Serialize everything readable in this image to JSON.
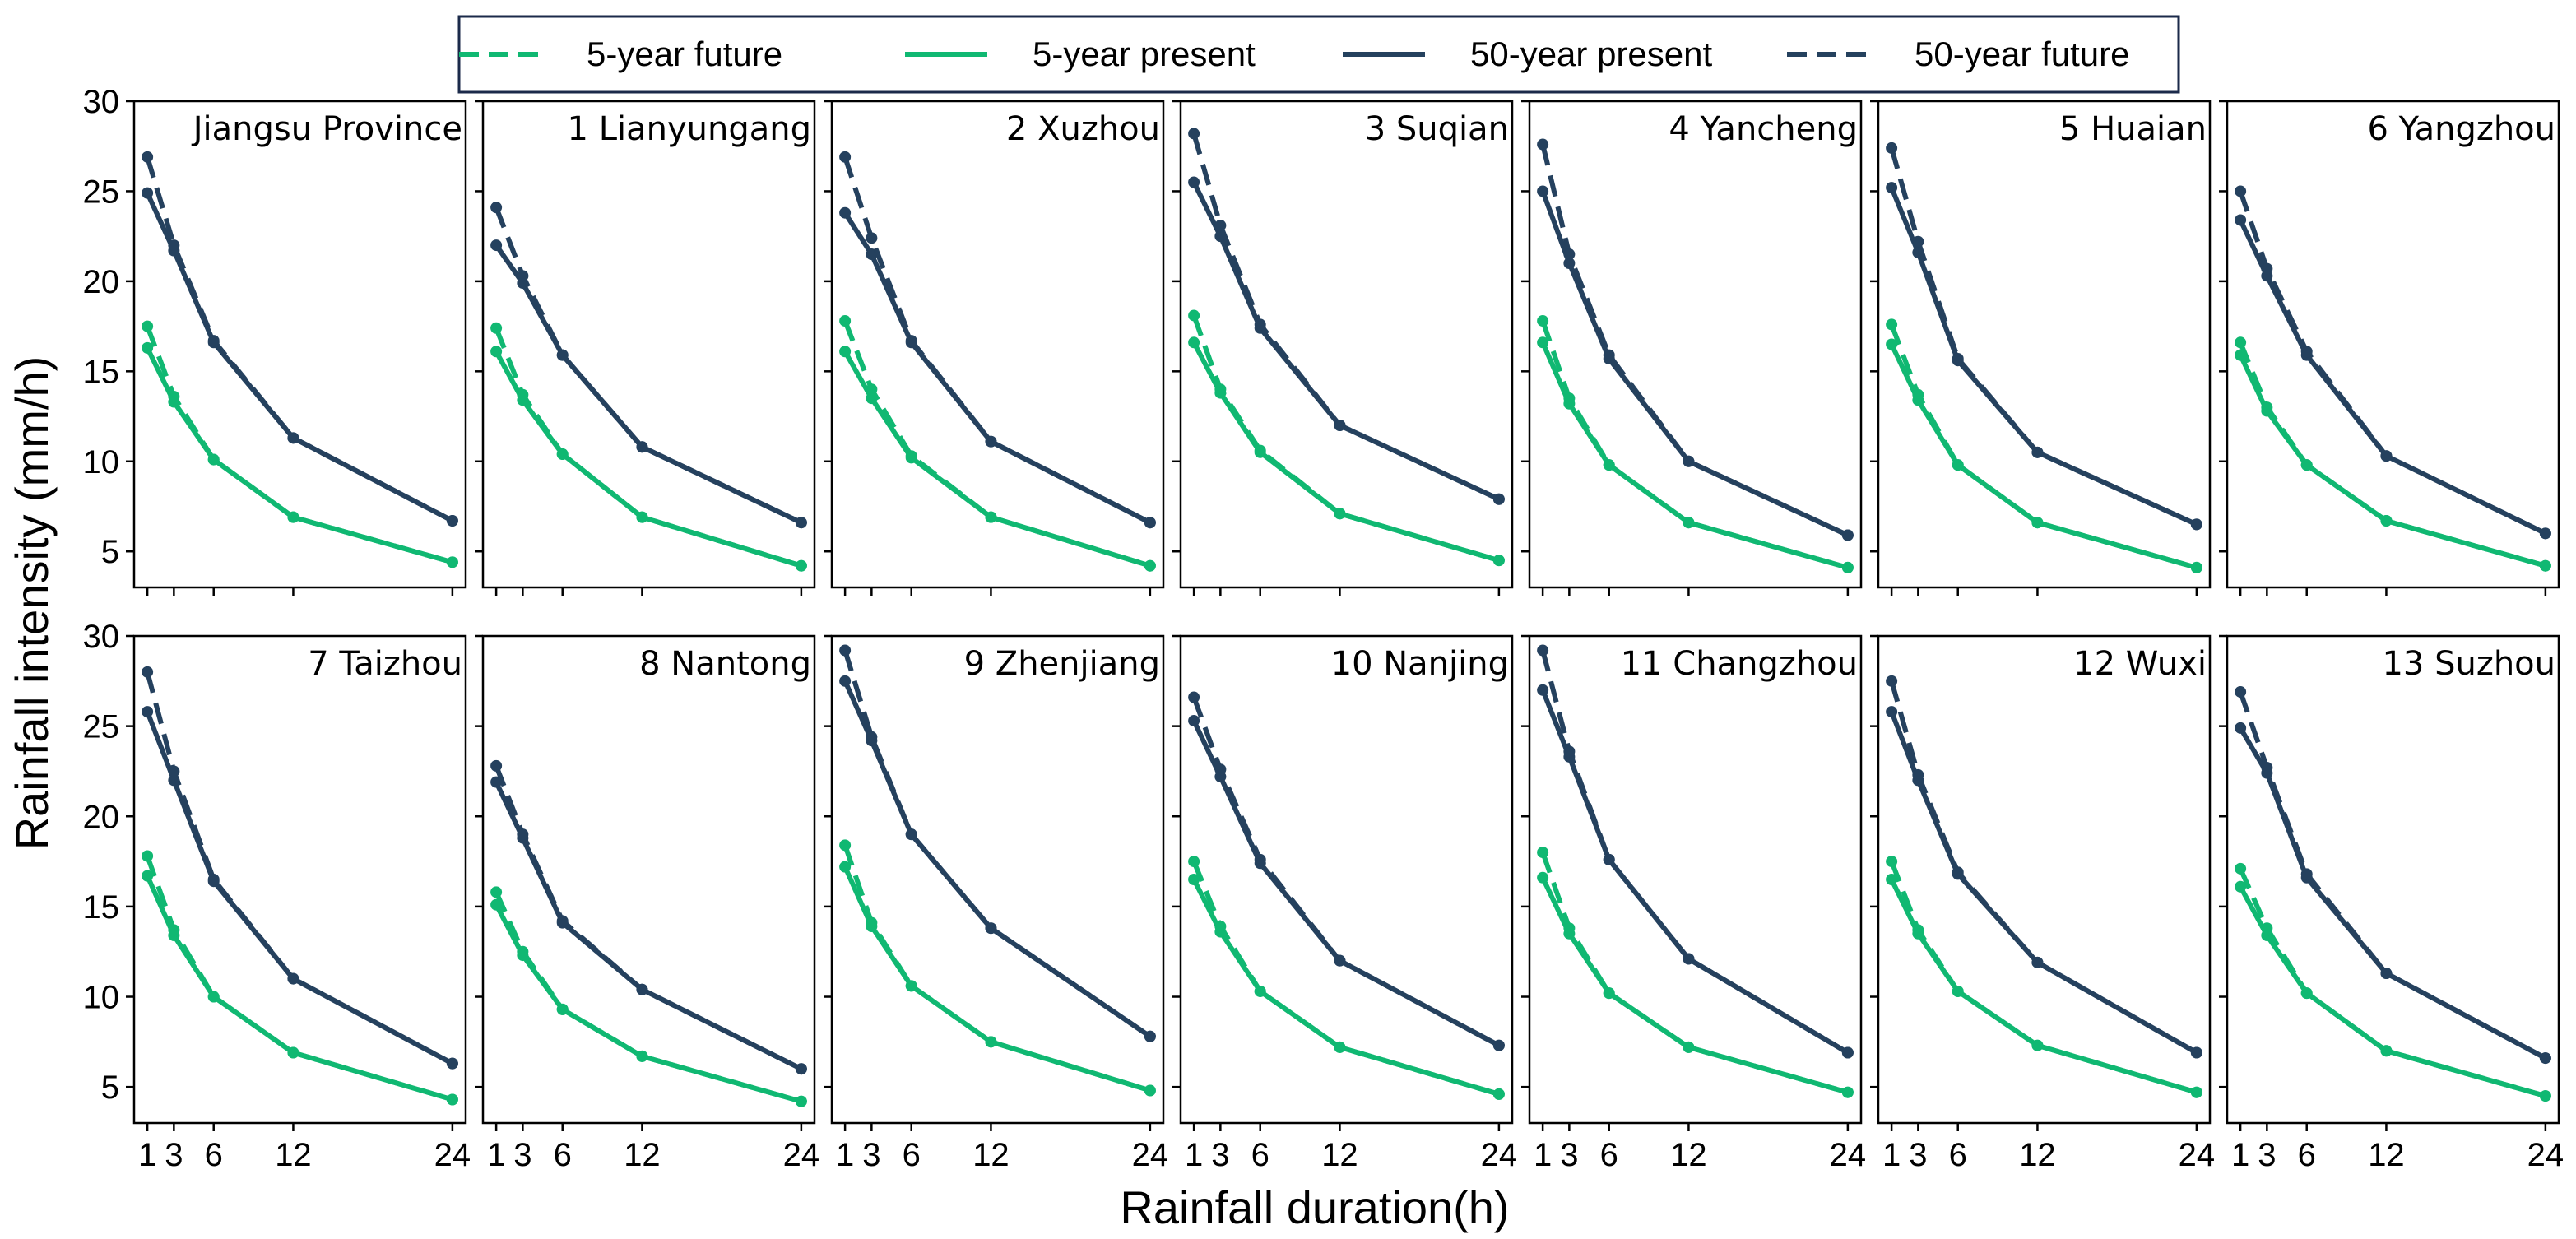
{
  "colors": {
    "five_year": "#10b872",
    "fifty_year": "#25415e"
  },
  "legend": {
    "items": [
      {
        "label": "5-year future",
        "color": "#10b872",
        "dashed": true
      },
      {
        "label": "5-year present",
        "color": "#10b872",
        "dashed": false
      },
      {
        "label": "50-year present",
        "color": "#25415e",
        "dashed": false
      },
      {
        "label": "50-year future",
        "color": "#25415e",
        "dashed": true
      }
    ]
  },
  "axes": {
    "xlabel": "Rainfall duration(h)",
    "ylabel": "Rainfall intensity (mm/h)",
    "x_ticks": [
      1,
      3,
      6,
      12,
      24
    ],
    "y_ticks": [
      5,
      10,
      15,
      20,
      25,
      30
    ],
    "xlim": [
      0,
      25
    ],
    "ylim": [
      3,
      30
    ]
  },
  "chart_data": {
    "type": "line",
    "x": [
      1,
      3,
      6,
      12,
      24
    ],
    "series_names": [
      "50-year future",
      "50-year present",
      "5-year future",
      "5-year present"
    ],
    "panels": [
      {
        "title": "Jiangsu Province",
        "y50f": [
          26.9,
          22.0,
          16.7,
          11.3,
          6.7
        ],
        "y50p": [
          24.9,
          21.7,
          16.6,
          11.3,
          6.7
        ],
        "y5f": [
          17.5,
          13.6,
          10.1,
          6.9,
          4.4
        ],
        "y5p": [
          16.3,
          13.3,
          10.1,
          6.9,
          4.4
        ]
      },
      {
        "title": "1 Lianyungang",
        "y50f": [
          24.1,
          20.3,
          15.9,
          10.8,
          6.6
        ],
        "y50p": [
          22.0,
          19.9,
          15.9,
          10.8,
          6.6
        ],
        "y5f": [
          17.4,
          13.7,
          10.4,
          6.9,
          4.2
        ],
        "y5p": [
          16.1,
          13.4,
          10.4,
          6.9,
          4.2
        ]
      },
      {
        "title": "2 Xuzhou",
        "y50f": [
          26.9,
          22.4,
          16.7,
          11.1,
          6.6
        ],
        "y50p": [
          23.8,
          21.5,
          16.6,
          11.1,
          6.6
        ],
        "y5f": [
          17.8,
          14.0,
          10.3,
          6.9,
          4.2
        ],
        "y5p": [
          16.1,
          13.5,
          10.2,
          6.9,
          4.2
        ]
      },
      {
        "title": "3 Suqian",
        "y50f": [
          28.2,
          23.1,
          17.6,
          12.0,
          7.9
        ],
        "y50p": [
          25.5,
          22.5,
          17.4,
          12.0,
          7.9
        ],
        "y5f": [
          18.1,
          14.0,
          10.6,
          7.1,
          4.5
        ],
        "y5p": [
          16.6,
          13.8,
          10.5,
          7.1,
          4.5
        ]
      },
      {
        "title": "4 Yancheng",
        "y50f": [
          27.6,
          21.5,
          15.9,
          10.0,
          5.9
        ],
        "y50p": [
          25.0,
          21.0,
          15.7,
          10.0,
          5.9
        ],
        "y5f": [
          17.8,
          13.5,
          9.8,
          6.6,
          4.1
        ],
        "y5p": [
          16.6,
          13.2,
          9.8,
          6.6,
          4.1
        ]
      },
      {
        "title": "5 Huaian",
        "y50f": [
          27.4,
          22.2,
          15.7,
          10.5,
          6.5
        ],
        "y50p": [
          25.2,
          21.6,
          15.6,
          10.5,
          6.5
        ],
        "y5f": [
          17.6,
          13.7,
          9.8,
          6.6,
          4.1
        ],
        "y5p": [
          16.5,
          13.4,
          9.8,
          6.6,
          4.1
        ]
      },
      {
        "title": "6 Yangzhou",
        "y50f": [
          25.0,
          20.7,
          16.1,
          10.3,
          6.0
        ],
        "y50p": [
          23.4,
          20.3,
          15.9,
          10.3,
          6.0
        ],
        "y5f": [
          16.6,
          13.0,
          9.8,
          6.7,
          4.2
        ],
        "y5p": [
          15.9,
          12.8,
          9.8,
          6.7,
          4.2
        ]
      },
      {
        "title": "7 Taizhou",
        "y50f": [
          28.0,
          22.5,
          16.5,
          11.0,
          6.3
        ],
        "y50p": [
          25.8,
          22.0,
          16.4,
          11.0,
          6.3
        ],
        "y5f": [
          17.8,
          13.7,
          10.0,
          6.9,
          4.3
        ],
        "y5p": [
          16.7,
          13.4,
          10.0,
          6.9,
          4.3
        ]
      },
      {
        "title": "8 Nantong",
        "y50f": [
          22.8,
          19.0,
          14.2,
          10.4,
          6.0
        ],
        "y50p": [
          21.9,
          18.8,
          14.1,
          10.4,
          6.0
        ],
        "y5f": [
          15.8,
          12.5,
          9.3,
          6.7,
          4.2
        ],
        "y5p": [
          15.1,
          12.3,
          9.3,
          6.7,
          4.2
        ]
      },
      {
        "title": "9 Zhenjiang",
        "y50f": [
          29.2,
          24.4,
          19.0,
          13.8,
          7.8
        ],
        "y50p": [
          27.5,
          24.2,
          19.0,
          13.8,
          7.8
        ],
        "y5f": [
          18.4,
          14.1,
          10.6,
          7.5,
          4.8
        ],
        "y5p": [
          17.2,
          13.9,
          10.6,
          7.5,
          4.8
        ]
      },
      {
        "title": "10 Nanjing",
        "y50f": [
          26.6,
          22.6,
          17.6,
          12.0,
          7.3
        ],
        "y50p": [
          25.3,
          22.2,
          17.4,
          12.0,
          7.3
        ],
        "y5f": [
          17.5,
          13.9,
          10.3,
          7.2,
          4.6
        ],
        "y5p": [
          16.5,
          13.6,
          10.3,
          7.2,
          4.6
        ]
      },
      {
        "title": "11 Changzhou",
        "y50f": [
          29.2,
          23.6,
          17.6,
          12.1,
          6.9
        ],
        "y50p": [
          27.0,
          23.3,
          17.6,
          12.1,
          6.9
        ],
        "y5f": [
          18.0,
          13.8,
          10.2,
          7.2,
          4.7
        ],
        "y5p": [
          16.6,
          13.5,
          10.2,
          7.2,
          4.7
        ]
      },
      {
        "title": "12 Wuxi",
        "y50f": [
          27.5,
          22.3,
          16.9,
          11.9,
          6.9
        ],
        "y50p": [
          25.8,
          22.0,
          16.8,
          11.9,
          6.9
        ],
        "y5f": [
          17.5,
          13.7,
          10.3,
          7.3,
          4.7
        ],
        "y5p": [
          16.5,
          13.5,
          10.3,
          7.3,
          4.7
        ]
      },
      {
        "title": "13 Suzhou",
        "y50f": [
          26.9,
          22.7,
          16.8,
          11.3,
          6.6
        ],
        "y50p": [
          24.9,
          22.4,
          16.6,
          11.3,
          6.6
        ],
        "y5f": [
          17.1,
          13.8,
          10.2,
          7.0,
          4.5
        ],
        "y5p": [
          16.1,
          13.4,
          10.2,
          7.0,
          4.5
        ]
      }
    ]
  }
}
